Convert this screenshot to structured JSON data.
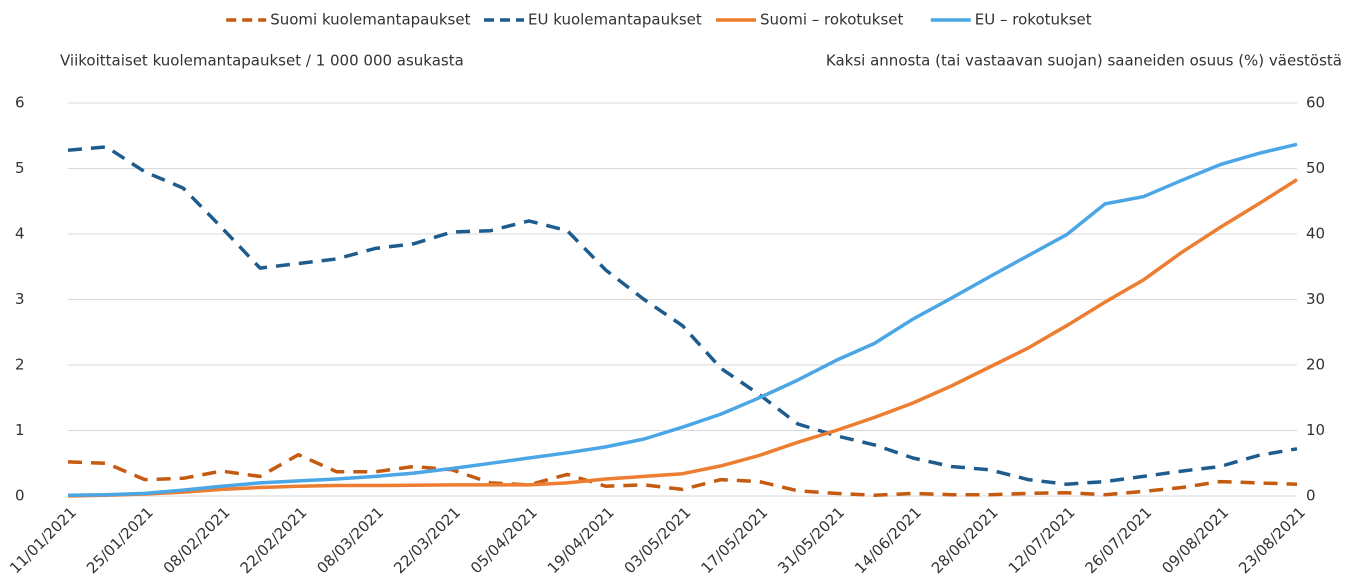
{
  "chart_data": {
    "type": "line",
    "y_label": "Viikoittaiset kuolemantapaukset / 1 000 000 asukasta",
    "y2_label": "Kaksi annosta (tai vastaavan suojan) saaneiden osuus (%) väestöstä",
    "categories": [
      "11/01/2021",
      null,
      "25/01/2021",
      null,
      "08/02/2021",
      null,
      "22/02/2021",
      null,
      "08/03/2021",
      null,
      "22/03/2021",
      null,
      "05/04/2021",
      null,
      "19/04/2021",
      null,
      "03/05/2021",
      null,
      "17/05/2021",
      null,
      "31/05/2021",
      null,
      "14/06/2021",
      null,
      "28/06/2021",
      null,
      "12/07/2021",
      null,
      "26/07/2021",
      null,
      "09/08/2021",
      null,
      "23/08/2021"
    ],
    "ylim": [
      0,
      6
    ],
    "yticks": [
      0,
      1,
      2,
      3,
      4,
      5,
      6
    ],
    "y2lim": [
      0,
      60
    ],
    "y2ticks": [
      0,
      10,
      20,
      30,
      40,
      50,
      60
    ],
    "grid": true,
    "legend": "top",
    "series": [
      {
        "name": "Suomi kuolemantapaukset",
        "color": "#c55a11",
        "style": "dashed",
        "values": [
          0.52,
          0.5,
          0.25,
          0.27,
          0.38,
          0.3,
          0.63,
          0.37,
          0.37,
          0.45,
          0.4,
          0.2,
          0.17,
          0.33,
          0.15,
          0.17,
          0.1,
          0.25,
          0.22,
          0.08,
          0.04,
          0.01,
          0.04,
          0.02,
          0.02,
          0.04,
          0.05,
          0.02,
          0.07,
          0.13,
          0.22,
          0.2,
          0.18
        ]
      },
      {
        "name": "EU kuolemantapaukset",
        "color": "#1f5c8e",
        "style": "dashed",
        "values": [
          5.28,
          5.33,
          4.95,
          4.7,
          4.1,
          3.48,
          3.55,
          3.62,
          3.78,
          3.85,
          4.03,
          4.05,
          4.2,
          4.05,
          3.45,
          3.0,
          2.6,
          1.95,
          1.55,
          1.1,
          0.92,
          0.78,
          0.58,
          0.45,
          0.4,
          0.25,
          0.18,
          0.22,
          0.3,
          0.38,
          0.45,
          0.62,
          0.72
        ]
      },
      {
        "name": "Suomi – rokotukset",
        "color": "#ed7d31",
        "style": "solid",
        "axis": "y2",
        "values": [
          0,
          0.1,
          0.3,
          0.6,
          1.0,
          1.3,
          1.5,
          1.6,
          1.6,
          1.65,
          1.7,
          1.7,
          1.7,
          2.0,
          2.6,
          3.0,
          3.4,
          4.6,
          6.2,
          8.2,
          10,
          12,
          14.2,
          16.8,
          19.7,
          22.6,
          26,
          29.6,
          33,
          37.2,
          41,
          44.6,
          48.3
        ]
      },
      {
        "name": "EU – rokotukset",
        "color": "#4ba6e6",
        "style": "solid",
        "axis": "y2",
        "values": [
          0.1,
          0.2,
          0.4,
          0.9,
          1.5,
          2.0,
          2.3,
          2.6,
          3.0,
          3.5,
          4.2,
          5.0,
          5.8,
          6.6,
          7.5,
          8.7,
          10.5,
          12.5,
          15.0,
          17.7,
          20.7,
          23.3,
          27,
          30.2,
          33.5,
          36.7,
          39.9,
          44.6,
          45.7,
          48.2,
          50.6,
          52.3,
          53.7
        ]
      }
    ]
  }
}
